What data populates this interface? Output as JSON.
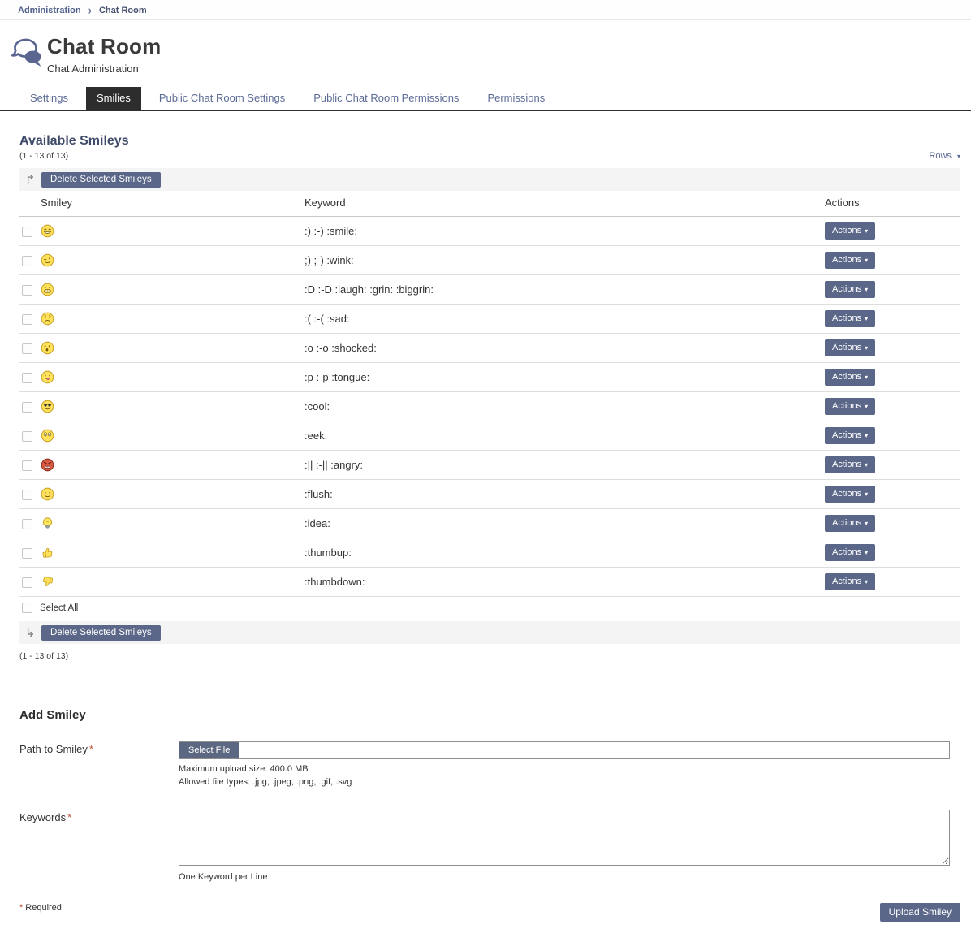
{
  "breadcrumb": {
    "items": [
      {
        "label": "Administration"
      },
      {
        "label": "Chat Room"
      }
    ]
  },
  "header": {
    "title": "Chat Room",
    "subtitle": "Chat Administration"
  },
  "tabs": [
    {
      "label": "Settings",
      "active": false
    },
    {
      "label": "Smilies",
      "active": true
    },
    {
      "label": "Public Chat Room Settings",
      "active": false
    },
    {
      "label": "Public Chat Room Permissions",
      "active": false
    },
    {
      "label": "Permissions",
      "active": false
    }
  ],
  "list": {
    "heading": "Available Smileys",
    "count": "(1 - 13 of 13)",
    "rows_label": "Rows",
    "delete_button": "Delete Selected Smileys",
    "columns": {
      "smiley": "Smiley",
      "keyword": "Keyword",
      "actions": "Actions"
    },
    "actions_button": "Actions",
    "select_all": "Select All",
    "rows": [
      {
        "icon": "smile",
        "keyword": ":) :-) :smile:"
      },
      {
        "icon": "wink",
        "keyword": ";) ;-) :wink:"
      },
      {
        "icon": "laugh",
        "keyword": ":D :-D :laugh: :grin: :biggrin:"
      },
      {
        "icon": "sad",
        "keyword": ":( :-( :sad:"
      },
      {
        "icon": "shocked",
        "keyword": ":o :-o :shocked:"
      },
      {
        "icon": "tongue",
        "keyword": ":p :-p :tongue:"
      },
      {
        "icon": "cool",
        "keyword": ":cool:"
      },
      {
        "icon": "eek",
        "keyword": ":eek:"
      },
      {
        "icon": "angry",
        "keyword": ":|| :-|| :angry:"
      },
      {
        "icon": "flush",
        "keyword": ":flush:"
      },
      {
        "icon": "idea",
        "keyword": ":idea:"
      },
      {
        "icon": "thumbup",
        "keyword": ":thumbup:"
      },
      {
        "icon": "thumbdown",
        "keyword": ":thumbdown:"
      }
    ]
  },
  "form": {
    "heading": "Add Smiley",
    "path_label": "Path to Smiley",
    "path_value": "",
    "select_file_button": "Select File",
    "max_upload": "Maximum upload size: 400.0 MB",
    "allowed_types": "Allowed file types: .jpg, .jpeg, .png, .gif, .svg",
    "keywords_label": "Keywords",
    "keywords_value": "",
    "keywords_note": "One Keyword per Line",
    "required_note": "Required",
    "upload_button": "Upload Smiley"
  },
  "icons": {
    "arrow_up_right": "↱",
    "arrow_down_right": "↳",
    "caret_down": "▾",
    "breadcrumb_chevron": "›"
  },
  "colors": {
    "accent_button": "#5a6788",
    "link": "#5c6b96",
    "active_tab_bg": "#2d2d2d",
    "heading": "#3f4b68",
    "required_asterisk": "#c0503a",
    "toolbar_bg": "#f4f4f4"
  }
}
